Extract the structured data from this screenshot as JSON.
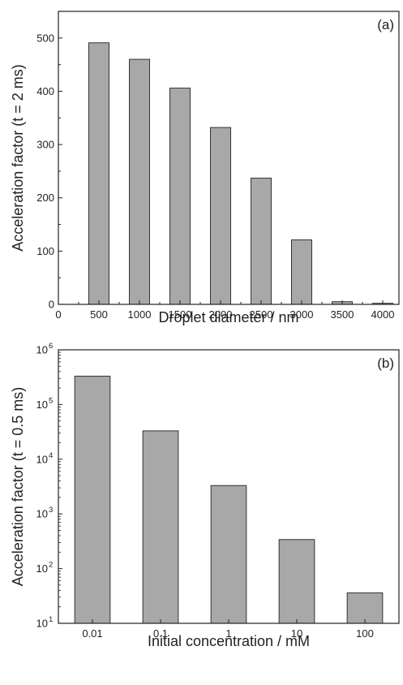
{
  "colors": {
    "bar_fill": "#a8a8a8",
    "bar_stroke": "#333333",
    "axis": "#222222"
  },
  "chart_data": [
    {
      "type": "bar",
      "panel_label": "(a)",
      "xlabel": "Droplet diameter / nm",
      "ylabel": "Acceleration factor (t = 2 ms)",
      "x_ticks": [
        "0",
        "500",
        "1000",
        "1500",
        "2000",
        "2500",
        "3000",
        "3500",
        "4000"
      ],
      "x_tick_values": [
        0,
        500,
        1000,
        1500,
        2000,
        2500,
        3000,
        3500,
        4000
      ],
      "y_ticks": [
        "0",
        "100",
        "200",
        "300",
        "400",
        "500"
      ],
      "y_tick_values": [
        0,
        100,
        200,
        300,
        400,
        500
      ],
      "xlim": [
        0,
        4200
      ],
      "ylim": [
        0,
        550
      ],
      "y_scale": "linear",
      "categories": [
        500,
        1000,
        1500,
        2000,
        2500,
        3000,
        3500,
        4000
      ],
      "values": [
        491,
        460,
        406,
        332,
        237,
        121,
        5,
        2
      ],
      "grid": false
    },
    {
      "type": "bar",
      "panel_label": "(b)",
      "xlabel": "Initial concentration / mM",
      "ylabel": "Acceleration factor (t = 0.5 ms)",
      "categories": [
        "0.01",
        "0.1",
        "1",
        "10",
        "100"
      ],
      "values": [
        330000,
        33000,
        3300,
        340,
        36
      ],
      "y_scale": "log",
      "y_ticks": [
        {
          "base": "10",
          "exp": "1"
        },
        {
          "base": "10",
          "exp": "2"
        },
        {
          "base": "10",
          "exp": "3"
        },
        {
          "base": "10",
          "exp": "4"
        },
        {
          "base": "10",
          "exp": "5"
        },
        {
          "base": "10",
          "exp": "6"
        }
      ],
      "ylim": [
        10,
        1000000
      ],
      "grid": false
    }
  ]
}
